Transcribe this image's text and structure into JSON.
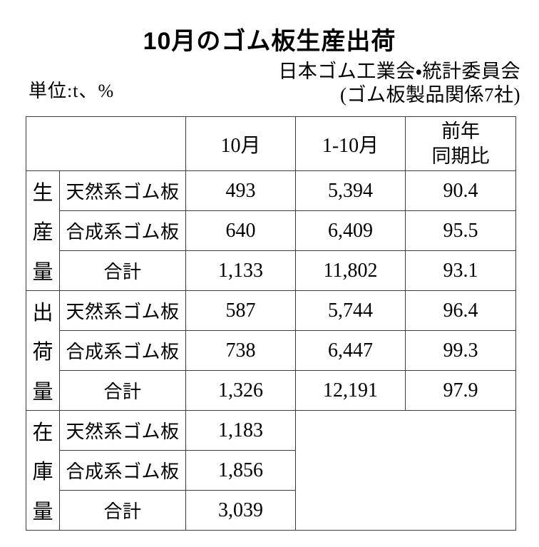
{
  "page": {
    "title": "10月のゴム板生産出荷",
    "unit_note": "単位:t、%",
    "attribution": {
      "line1": "日本ゴム工業会・統計委員会",
      "line2": "(ゴム板製品関係7社)"
    }
  },
  "table": {
    "headers": {
      "row_label": "",
      "month": "10月",
      "cumulative": "1-10月",
      "yoy": "前年\n同期比"
    },
    "sections": [
      {
        "group": "生産量",
        "rows": [
          {
            "item": "天然系ゴム板",
            "month": "493",
            "cumulative": "5,394",
            "yoy": "90.4"
          },
          {
            "item": "合成系ゴム板",
            "month": "640",
            "cumulative": "6,409",
            "yoy": "95.5"
          },
          {
            "item": "合計",
            "month": "1,133",
            "cumulative": "11,802",
            "yoy": "93.1"
          }
        ]
      },
      {
        "group": "出荷量",
        "rows": [
          {
            "item": "天然系ゴム板",
            "month": "587",
            "cumulative": "5,744",
            "yoy": "96.4"
          },
          {
            "item": "合成系ゴム板",
            "month": "738",
            "cumulative": "6,447",
            "yoy": "99.3"
          },
          {
            "item": "合計",
            "month": "1,326",
            "cumulative": "12,191",
            "yoy": "97.9"
          }
        ]
      },
      {
        "group": "在庫量",
        "rows": [
          {
            "item": "天然系ゴム板",
            "month": "1,183",
            "cumulative": "",
            "yoy": ""
          },
          {
            "item": "合成系ゴム板",
            "month": "1,856",
            "cumulative": "",
            "yoy": ""
          },
          {
            "item": "合計",
            "month": "3,039",
            "cumulative": "",
            "yoy": ""
          }
        ]
      }
    ]
  }
}
